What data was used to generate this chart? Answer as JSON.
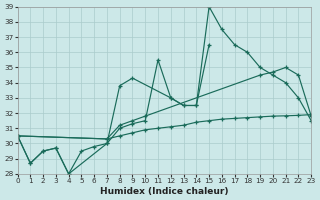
{
  "bg_color": "#cce8e8",
  "grid_color": "#aacccc",
  "line_color": "#1a6b5a",
  "xlabel": "Humidex (Indice chaleur)",
  "ylim": [
    28,
    39
  ],
  "xlim": [
    0,
    23
  ],
  "yticks": [
    28,
    29,
    30,
    31,
    32,
    33,
    34,
    35,
    36,
    37,
    38,
    39
  ],
  "xticks": [
    0,
    1,
    2,
    3,
    4,
    5,
    6,
    7,
    8,
    9,
    10,
    11,
    12,
    13,
    14,
    15,
    16,
    17,
    18,
    19,
    20,
    21,
    22,
    23
  ],
  "series": [
    {
      "x": [
        0,
        1,
        2,
        3,
        4,
        5,
        6,
        7,
        8,
        9,
        10,
        11,
        12,
        13,
        14,
        15,
        16,
        17,
        18,
        19,
        20,
        21,
        22,
        23
      ],
      "y": [
        30.5,
        28.7,
        29.5,
        29.7,
        28.0,
        29.5,
        29.8,
        30.0,
        31.0,
        31.3,
        31.5,
        35.5,
        33.0,
        32.5,
        32.5,
        39.0,
        37.5,
        36.5,
        36.0,
        35.0,
        34.5,
        34.0,
        33.0,
        31.5
      ]
    },
    {
      "x": [
        0,
        1,
        2,
        3,
        4,
        7,
        8,
        9,
        12,
        13,
        14,
        15
      ],
      "y": [
        30.5,
        28.7,
        29.5,
        29.7,
        28.0,
        30.0,
        33.8,
        34.3,
        33.0,
        32.5,
        32.5,
        36.5
      ]
    },
    {
      "x": [
        0,
        7,
        8,
        9,
        10,
        19,
        20,
        21,
        22,
        23
      ],
      "y": [
        30.5,
        30.3,
        31.2,
        31.5,
        31.8,
        34.5,
        34.7,
        35.0,
        34.5,
        31.8
      ]
    },
    {
      "x": [
        0,
        7,
        8,
        9,
        10,
        11,
        12,
        13,
        14,
        15,
        16,
        17,
        18,
        19,
        20,
        21,
        22,
        23
      ],
      "y": [
        30.5,
        30.3,
        30.5,
        30.7,
        30.9,
        31.0,
        31.1,
        31.2,
        31.4,
        31.5,
        31.6,
        31.65,
        31.7,
        31.75,
        31.8,
        31.82,
        31.85,
        31.9
      ]
    }
  ]
}
